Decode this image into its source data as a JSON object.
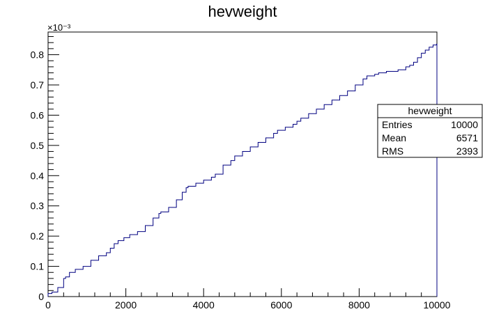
{
  "chart_data": {
    "type": "histogram-step",
    "title": "hevweight",
    "xlabel": "",
    "ylabel": "",
    "xlim": [
      0,
      10000
    ],
    "ylim": [
      0,
      0.000875
    ],
    "y_exponent_label": "×10⁻³",
    "x_ticks": [
      "0",
      "2000",
      "4000",
      "6000",
      "8000",
      "10000"
    ],
    "y_ticks": [
      "0",
      "0.1",
      "0.2",
      "0.3",
      "0.4",
      "0.5",
      "0.6",
      "0.7",
      "0.8"
    ],
    "line_color": "#000080",
    "x": [
      0,
      100,
      250,
      400,
      450,
      550,
      700,
      900,
      1100,
      1300,
      1500,
      1600,
      1700,
      1800,
      1950,
      2100,
      2300,
      2500,
      2700,
      2850,
      2900,
      3100,
      3300,
      3450,
      3550,
      3600,
      3800,
      4000,
      4200,
      4300,
      4500,
      4700,
      4800,
      5000,
      5200,
      5400,
      5600,
      5800,
      5900,
      6100,
      6300,
      6400,
      6500,
      6700,
      6900,
      7100,
      7300,
      7500,
      7700,
      7900,
      8100,
      8200,
      8400,
      8500,
      8700,
      9000,
      9200,
      9300,
      9400,
      9500,
      9600,
      9700,
      9800,
      9900,
      9990,
      10000
    ],
    "y": [
      1e-05,
      1.5e-05,
      3e-05,
      6e-05,
      6.5e-05,
      8e-05,
      9e-05,
      0.0001,
      0.00012,
      0.000135,
      0.000145,
      0.00016,
      0.000175,
      0.000185,
      0.000195,
      0.000205,
      0.000215,
      0.000235,
      0.00026,
      0.000275,
      0.00028,
      0.000295,
      0.00032,
      0.000345,
      0.00036,
      0.000365,
      0.000375,
      0.000385,
      0.000395,
      0.000405,
      0.000435,
      0.00045,
      0.000465,
      0.00048,
      0.000495,
      0.00051,
      0.000525,
      0.00054,
      0.00055,
      0.00056,
      0.00057,
      0.00058,
      0.00059,
      0.000605,
      0.00062,
      0.000635,
      0.00065,
      0.000665,
      0.00068,
      0.0007,
      0.00072,
      0.00073,
      0.000735,
      0.00074,
      0.000745,
      0.00075,
      0.00076,
      0.000765,
      0.000775,
      0.00079,
      0.000805,
      0.000815,
      0.000825,
      0.000832,
      0.000835,
      0
    ]
  },
  "stats_box": {
    "title": "hevweight",
    "rows": [
      {
        "label": "Entries",
        "value": "10000"
      },
      {
        "label": "Mean",
        "value": "6571"
      },
      {
        "label": "RMS",
        "value": "2393"
      }
    ]
  }
}
